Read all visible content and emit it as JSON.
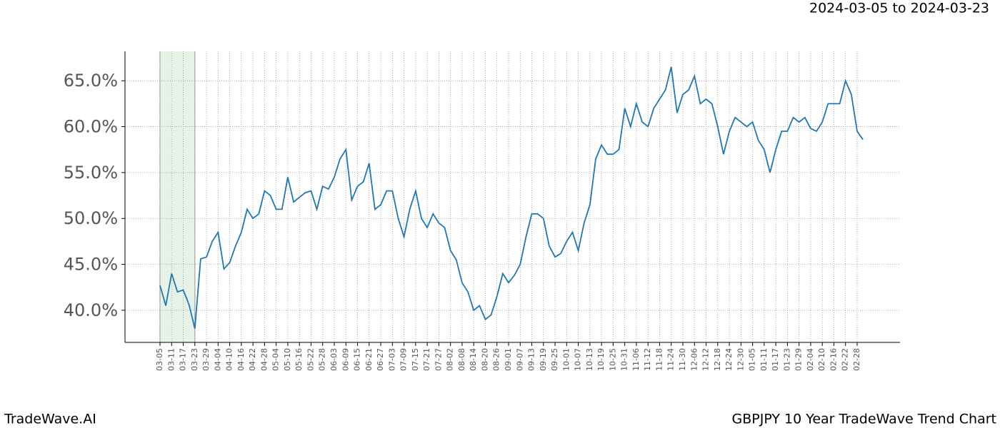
{
  "chart_data": {
    "type": "line",
    "title": "2024-03-05 to 2024-03-23",
    "footer_left": "TradeWave.AI",
    "footer_right": "GBPJPY 10 Year TradeWave Trend Chart",
    "shade": {
      "from": "03-05",
      "to": "03-23",
      "color": "#e6f2e6"
    },
    "categories": [
      "03-05",
      null,
      "03-11",
      null,
      "03-17",
      null,
      "03-23",
      null,
      "03-29",
      null,
      "04-04",
      null,
      "04-10",
      null,
      "04-16",
      null,
      "04-22",
      null,
      "04-28",
      null,
      "05-04",
      null,
      "05-10",
      null,
      "05-16",
      null,
      "05-22",
      null,
      "05-28",
      null,
      "06-03",
      null,
      "06-09",
      null,
      "06-15",
      null,
      "06-21",
      null,
      "06-27",
      null,
      "07-03",
      null,
      "07-09",
      null,
      "07-15",
      null,
      "07-21",
      null,
      "07-27",
      null,
      "08-02",
      null,
      "08-08",
      null,
      "08-14",
      null,
      "08-20",
      null,
      "08-26",
      null,
      "09-01",
      null,
      "09-07",
      null,
      "09-13",
      null,
      "09-19",
      null,
      "09-25",
      null,
      "10-01",
      null,
      "10-07",
      null,
      "10-13",
      null,
      "10-19",
      null,
      "10-25",
      null,
      "10-31",
      null,
      "11-06",
      null,
      "11-12",
      null,
      "11-18",
      null,
      "11-24",
      null,
      "11-30",
      null,
      "12-06",
      null,
      "12-12",
      null,
      "12-18",
      null,
      "12-24",
      null,
      "12-30",
      null,
      "01-05",
      null,
      "01-11",
      null,
      "01-17",
      null,
      "01-23",
      null,
      "01-29",
      null,
      "02-04",
      null,
      "02-10",
      null,
      "02-16",
      null,
      "02-22",
      null,
      "02-28",
      null
    ],
    "series": [
      {
        "name": "GBPJPY",
        "color": "#1f77b4",
        "values": [
          42.7,
          40.5,
          44.0,
          42.0,
          42.2,
          40.6,
          38.0,
          45.6,
          45.8,
          47.5,
          48.5,
          44.5,
          45.2,
          47.0,
          48.5,
          51.0,
          50.0,
          50.5,
          53.0,
          52.5,
          51.0,
          51.0,
          54.5,
          51.8,
          52.3,
          52.8,
          53.0,
          51.0,
          53.5,
          53.2,
          54.5,
          56.5,
          57.5,
          52.0,
          53.5,
          54.0,
          56.0,
          51.0,
          51.5,
          53.0,
          53.0,
          50.0,
          48.0,
          51.0,
          53.0,
          50.0,
          49.0,
          50.5,
          49.5,
          49.0,
          46.5,
          45.5,
          43.0,
          42.0,
          40.0,
          40.5,
          39.0,
          39.5,
          41.5,
          44.0,
          43.0,
          43.8,
          45.0,
          48.0,
          50.5,
          50.5,
          50.0,
          47.0,
          45.8,
          46.2,
          47.5,
          48.5,
          46.5,
          49.5,
          51.5,
          56.5,
          58.0,
          57.0,
          57.0,
          57.5,
          62.0,
          60.0,
          62.5,
          60.5,
          60.0,
          62.0,
          63.0,
          64.0,
          66.5,
          61.5,
          63.5,
          64.0,
          65.5,
          62.5,
          63.0,
          62.5,
          60.0,
          57.0,
          59.5,
          61.0,
          60.5,
          60.0,
          60.5,
          58.5,
          57.5,
          55.0,
          57.5,
          59.5,
          59.5,
          61.0,
          60.5,
          61.0,
          59.8,
          59.5,
          60.5,
          62.5,
          62.5,
          62.5,
          65.0,
          63.5,
          59.5,
          58.6
        ]
      }
    ],
    "ylim": [
      36.5,
      68.2
    ],
    "yticks": [
      {
        "value": 40,
        "label": "40.0%"
      },
      {
        "value": 45,
        "label": "45.0%"
      },
      {
        "value": 50,
        "label": "50.0%"
      },
      {
        "value": 55,
        "label": "55.0%"
      },
      {
        "value": 60,
        "label": "60.0%"
      },
      {
        "value": 65,
        "label": "65.0%"
      }
    ],
    "grid": true
  }
}
